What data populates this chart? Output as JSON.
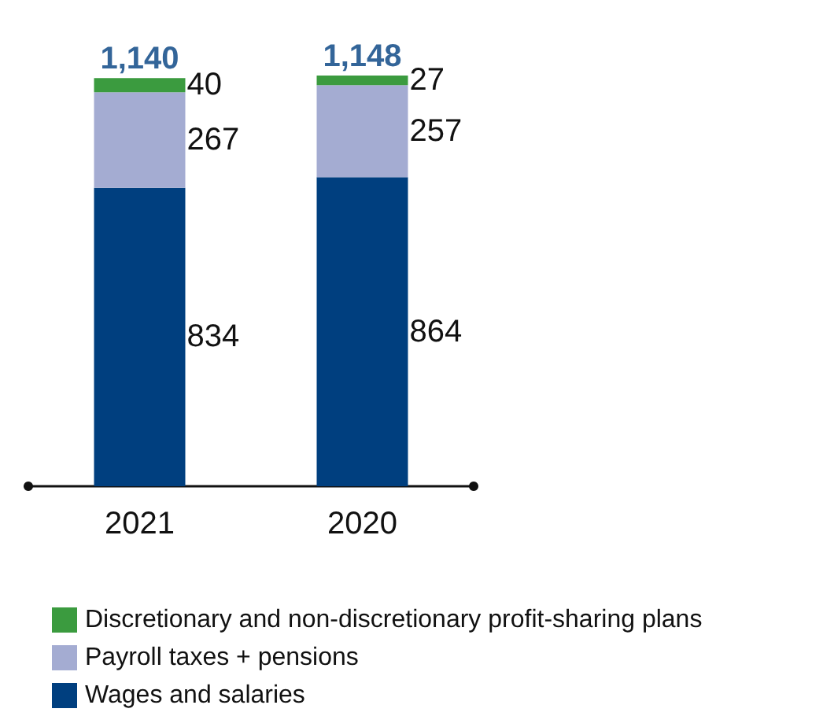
{
  "chart_data": {
    "type": "bar",
    "stacked": true,
    "categories": [
      "2021",
      "2020"
    ],
    "series": [
      {
        "name": "Wages and salaries",
        "color": "#003f7f",
        "values": [
          834,
          864
        ]
      },
      {
        "name": "Payroll taxes + pensions",
        "color": "#a4acd2",
        "values": [
          267,
          257
        ]
      },
      {
        "name": "Discretionary and non-discretionary profit-sharing plans",
        "color": "#3b9b3f",
        "values": [
          40,
          27
        ]
      }
    ],
    "data_labels": true,
    "totals": [
      "1,140",
      "1,148"
    ],
    "legend": "bottom",
    "tick_labels": "x"
  }
}
